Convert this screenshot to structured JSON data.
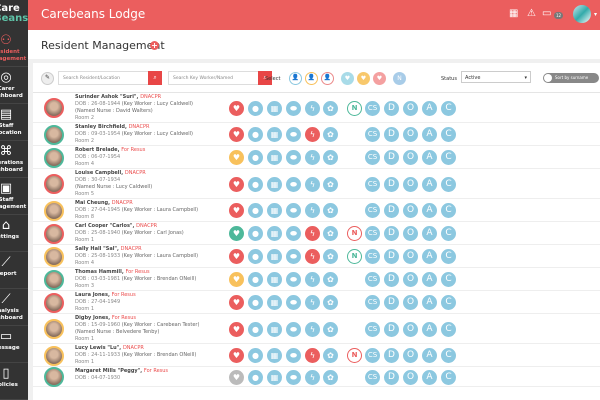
{
  "app": {
    "logo": "Care Beans",
    "title": "Carebeans Lodge",
    "message_count": "12",
    "page_title": "Resident Management"
  },
  "sidebar": {
    "items": [
      {
        "label": "Resident Management",
        "icon": "people-icon",
        "active": true
      },
      {
        "label": "Carer Dashboard",
        "icon": "carer-icon"
      },
      {
        "label": "Staff Allocation",
        "icon": "clipboard-icon"
      },
      {
        "label": "Operations Dashboard",
        "icon": "sitemap-icon"
      },
      {
        "label": "Staff Management",
        "icon": "id-card-icon"
      },
      {
        "label": "Settings",
        "icon": "home-icon"
      },
      {
        "label": "Report",
        "icon": "chart-icon"
      },
      {
        "label": "Analysis Dashboard",
        "icon": "chart-icon"
      },
      {
        "label": "Message",
        "icon": "message-icon"
      },
      {
        "label": "Policies",
        "icon": "document-icon"
      }
    ]
  },
  "toolbar": {
    "search_resident_placeholder": "Search Resident/Location",
    "search_worker_placeholder": "Search Key Worker/Named",
    "select_label": "Select",
    "status_label": "Status",
    "status_value": "Active",
    "sort_label": "Sort by surname"
  },
  "colors": {
    "red": "#eb5e5e",
    "green": "#4db89a",
    "yellow": "#f8c15c",
    "blue": "#8cc8e0",
    "grey": "#bbbbbb"
  },
  "residents": [
    {
      "name": "Surinder Ashok \"Suri\"",
      "status": "DNACPR",
      "dob": "DOB : 26-08-1944",
      "key_worker": "(Key Worker : Lucy Caldwell)",
      "named_nurse": "(Named Nurse : David Walters)",
      "room": "Room 2",
      "ring": "red",
      "heart": "red",
      "bolt": "blue",
      "n": "green"
    },
    {
      "name": "Stanley Birchfield",
      "status": "DNACPR",
      "dob": "DOB : 09-03-1954",
      "key_worker": "(Key Worker : Lucy Caldwell)",
      "room": "Room 2",
      "ring": "green",
      "heart": "red",
      "bolt": "red"
    },
    {
      "name": "Robert Brelade",
      "status": "For Resus",
      "dob": "DOB : 06-07-1954",
      "room": "Room 4",
      "ring": "green",
      "heart": "yellow",
      "bolt": "blue"
    },
    {
      "name": "Louise Campbell",
      "status": "DNACPR",
      "dob": "DOB : 30-07-1934",
      "named_nurse": "(Named Nurse : Lucy Caldwell)",
      "room": "Room 5",
      "ring": "red",
      "heart": "red",
      "bolt": "blue"
    },
    {
      "name": "Mai Cheung",
      "status": "DNACPR",
      "dob": "DOB : 27-04-1945",
      "key_worker": "(Key Worker : Laura Campbell)",
      "room": "Room 8",
      "ring": "yellow",
      "heart": "red",
      "bolt": "blue"
    },
    {
      "name": "Carl Cooper \"Carlos\"",
      "status": "DNACPR",
      "dob": "DOB : 25-08-1940",
      "key_worker": "(Key Worker : Carl Jonas)",
      "room": "Room 1",
      "ring": "red",
      "heart": "green",
      "bolt": "red",
      "n": "red"
    },
    {
      "name": "Sally Hall \"Sal\"",
      "status": "DNACPR",
      "dob": "DOB : 25-08-1933",
      "key_worker": "(Key Worker : Laura Campbell)",
      "room": "Room 4",
      "ring": "yellow",
      "heart": "red",
      "bolt": "red",
      "n": "green"
    },
    {
      "name": "Thomas Hammill",
      "status": "For Resus",
      "dob": "DOB : 03-03-1981",
      "key_worker": "(Key Worker : Brendan ONeill)",
      "room": "Room 3",
      "ring": "green",
      "heart": "yellow",
      "bolt": "blue"
    },
    {
      "name": "Laura Jones",
      "status": "For Resus",
      "dob": "DOB : 27-04-1949",
      "room": "Room 1",
      "ring": "red",
      "heart": "red",
      "bolt": "blue"
    },
    {
      "name": "Digby Jones",
      "status": "For Resus",
      "dob": "DOB : 15-09-1960",
      "key_worker": "(Key Worker : Carebean Tester)",
      "named_nurse": "(Named Nurse : Belvedere Tenby)",
      "room": "Room 1",
      "ring": "yellow",
      "heart": "red",
      "bolt": "blue"
    },
    {
      "name": "Lucy Lewis \"Lu\"",
      "status": "DNACPR",
      "dob": "DOB : 24-11-1933",
      "key_worker": "(Key Worker : Brendan ONeill)",
      "room": "Room 1",
      "ring": "yellow",
      "heart": "red",
      "bolt": "red",
      "n": "red"
    },
    {
      "name": "Margaret Mills  \"Peggy\"",
      "status": "For Resus",
      "dob": "DOB : 04-07-1930",
      "room": "",
      "ring": "green",
      "heart": "grey",
      "bolt": "blue"
    }
  ],
  "row_badges": [
    "CS",
    "D",
    "O",
    "A",
    "C"
  ]
}
